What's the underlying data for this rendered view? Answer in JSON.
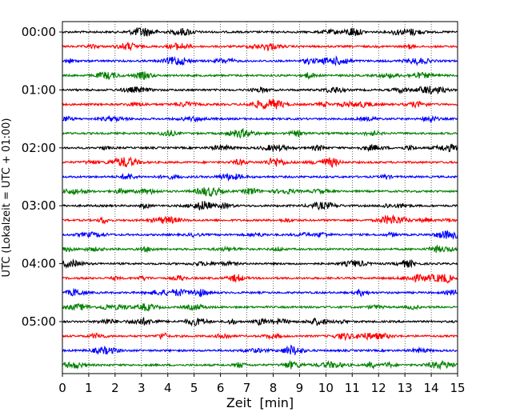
{
  "chart_data": {
    "type": "line",
    "title": "",
    "xlabel": "Zeit  [min]",
    "ylabel": "UTC (Lokalzeit = UTC + 01:00)",
    "xlim": [
      0,
      15
    ],
    "x_ticks": [
      "0",
      "1",
      "2",
      "3",
      "4",
      "5",
      "6",
      "7",
      "8",
      "9",
      "10",
      "11",
      "12",
      "13",
      "14",
      "15"
    ],
    "y_ticks": [
      {
        "label": "00:00",
        "trace_index": 0
      },
      {
        "label": "01:00",
        "trace_index": 4
      },
      {
        "label": "02:00",
        "trace_index": 8
      },
      {
        "label": "03:00",
        "trace_index": 12
      },
      {
        "label": "04:00",
        "trace_index": 16
      },
      {
        "label": "05:00",
        "trace_index": 20
      }
    ],
    "grid": {
      "x": true,
      "y": false,
      "style": "dotted"
    },
    "trace_count": 24,
    "trace_minutes": 15,
    "colors": [
      "#000000",
      "#ff0000",
      "#0000ff",
      "#008000"
    ],
    "legend": "none"
  }
}
